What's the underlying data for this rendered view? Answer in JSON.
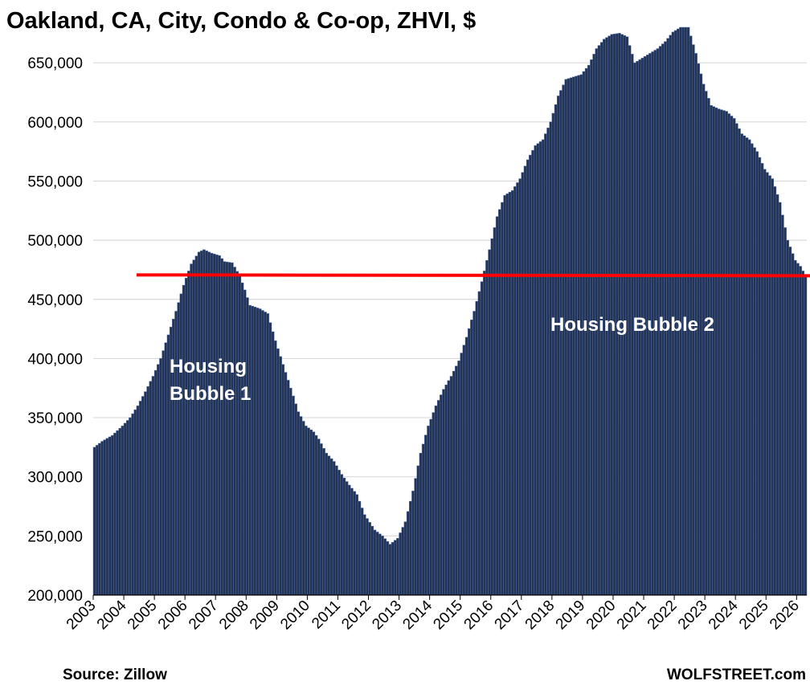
{
  "title": "Oakland, CA, City, Condo & Co-op, ZHVI, $",
  "source": "Source: Zillow",
  "brand": "WOLFSTREET.com",
  "colors": {
    "bar_fill": "#253352",
    "bar_edge": "#4a6fb5",
    "reference_line": "#ff0000",
    "annotation_text": "#ffffff",
    "gridline": "#d9d9d9"
  },
  "chart_data": {
    "type": "bar",
    "x_start": "2003-01",
    "x_end": "2026-04",
    "frequency": "monthly",
    "ylim": [
      200000,
      680000
    ],
    "grid": true,
    "y_ticks": [
      "200,000",
      "250,000",
      "300,000",
      "350,000",
      "400,000",
      "450,000",
      "500,000",
      "550,000",
      "600,000",
      "650,000"
    ],
    "y_tick_values": [
      200000,
      250000,
      300000,
      350000,
      400000,
      450000,
      500000,
      550000,
      600000,
      650000
    ],
    "x_ticks": [
      "2003",
      "2004",
      "2005",
      "2006",
      "2007",
      "2008",
      "2009",
      "2010",
      "2011",
      "2012",
      "2013",
      "2014",
      "2015",
      "2016",
      "2017",
      "2018",
      "2019",
      "2020",
      "2021",
      "2022",
      "2023",
      "2024",
      "2025",
      "2026"
    ],
    "reference_line": {
      "value": 470000,
      "from": "2004-06",
      "to": "2026-04"
    },
    "annotations": [
      {
        "text": "Housing Bubble 1",
        "lines": [
          "Housing",
          "Bubble 1"
        ]
      },
      {
        "text": "Housing Bubble 2",
        "lines": [
          "Housing Bubble 2"
        ]
      }
    ],
    "keypoints": [
      [
        "2003-01",
        325000
      ],
      [
        "2003-04",
        330000
      ],
      [
        "2003-08",
        335000
      ],
      [
        "2003-12",
        343000
      ],
      [
        "2004-03",
        350000
      ],
      [
        "2004-06",
        360000
      ],
      [
        "2004-09",
        372000
      ],
      [
        "2004-12",
        385000
      ],
      [
        "2005-03",
        400000
      ],
      [
        "2005-06",
        420000
      ],
      [
        "2005-09",
        440000
      ],
      [
        "2005-12",
        462000
      ],
      [
        "2006-03",
        480000
      ],
      [
        "2006-06",
        490000
      ],
      [
        "2006-08",
        492000
      ],
      [
        "2006-11",
        489000
      ],
      [
        "2007-02",
        487000
      ],
      [
        "2007-04",
        482000
      ],
      [
        "2007-07",
        481000
      ],
      [
        "2007-10",
        470000
      ],
      [
        "2007-12",
        458000
      ],
      [
        "2008-02",
        445000
      ],
      [
        "2008-06",
        442000
      ],
      [
        "2008-09",
        438000
      ],
      [
        "2008-12",
        415000
      ],
      [
        "2009-03",
        395000
      ],
      [
        "2009-06",
        375000
      ],
      [
        "2009-09",
        355000
      ],
      [
        "2009-12",
        343000
      ],
      [
        "2010-03",
        338000
      ],
      [
        "2010-05",
        332000
      ],
      [
        "2010-08",
        320000
      ],
      [
        "2010-11",
        313000
      ],
      [
        "2011-02",
        302000
      ],
      [
        "2011-05",
        293000
      ],
      [
        "2011-08",
        285000
      ],
      [
        "2011-11",
        268000
      ],
      [
        "2012-03",
        255000
      ],
      [
        "2012-06",
        250000
      ],
      [
        "2012-09",
        243000
      ],
      [
        "2012-12",
        248000
      ],
      [
        "2013-03",
        262000
      ],
      [
        "2013-06",
        288000
      ],
      [
        "2013-09",
        320000
      ],
      [
        "2013-12",
        343000
      ],
      [
        "2014-03",
        360000
      ],
      [
        "2014-06",
        374000
      ],
      [
        "2014-09",
        385000
      ],
      [
        "2014-12",
        398000
      ],
      [
        "2015-03",
        418000
      ],
      [
        "2015-06",
        440000
      ],
      [
        "2015-09",
        465000
      ],
      [
        "2015-12",
        492000
      ],
      [
        "2016-03",
        520000
      ],
      [
        "2016-06",
        538000
      ],
      [
        "2016-09",
        542000
      ],
      [
        "2016-12",
        552000
      ],
      [
        "2017-03",
        568000
      ],
      [
        "2017-06",
        580000
      ],
      [
        "2017-09",
        585000
      ],
      [
        "2017-12",
        600000
      ],
      [
        "2018-03",
        622000
      ],
      [
        "2018-06",
        636000
      ],
      [
        "2018-09",
        638000
      ],
      [
        "2018-12",
        640000
      ],
      [
        "2019-03",
        648000
      ],
      [
        "2019-06",
        662000
      ],
      [
        "2019-09",
        670000
      ],
      [
        "2019-12",
        674000
      ],
      [
        "2020-03",
        675000
      ],
      [
        "2020-06",
        672000
      ],
      [
        "2020-09",
        650000
      ],
      [
        "2020-12",
        654000
      ],
      [
        "2021-03",
        658000
      ],
      [
        "2021-06",
        662000
      ],
      [
        "2021-09",
        668000
      ],
      [
        "2021-12",
        676000
      ],
      [
        "2022-03",
        680000
      ],
      [
        "2022-06",
        680000
      ],
      [
        "2022-09",
        658000
      ],
      [
        "2022-12",
        632000
      ],
      [
        "2023-03",
        614000
      ],
      [
        "2023-06",
        611000
      ],
      [
        "2023-09",
        609000
      ],
      [
        "2023-12",
        603000
      ],
      [
        "2024-03",
        590000
      ],
      [
        "2024-06",
        585000
      ],
      [
        "2024-09",
        575000
      ],
      [
        "2024-12",
        560000
      ],
      [
        "2025-03",
        552000
      ],
      [
        "2025-06",
        532000
      ],
      [
        "2025-09",
        500000
      ],
      [
        "2025-12",
        483000
      ],
      [
        "2026-02",
        478000
      ],
      [
        "2026-04",
        470000
      ]
    ]
  }
}
